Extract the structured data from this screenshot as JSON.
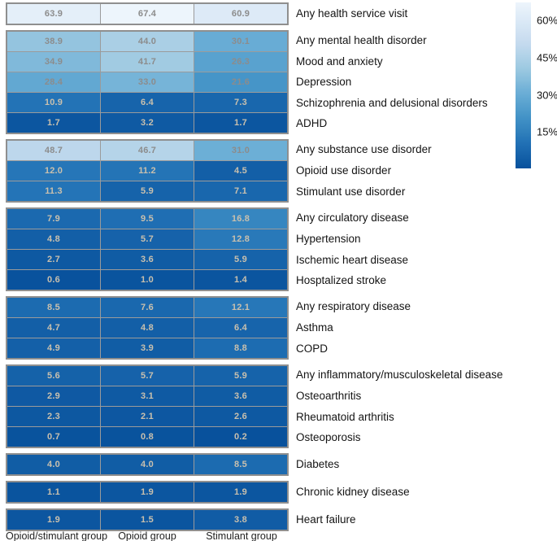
{
  "chart_data": {
    "type": "heatmap",
    "title": "",
    "orientation": "rows are conditions, columns are cohorts; value = prevalence %",
    "columns": [
      "Opioid/stimulant group",
      "Opioid group",
      "Stimulant group"
    ],
    "groups": [
      {
        "rows": [
          {
            "label": "Any health service visit",
            "values": [
              "63.9",
              "67.4",
              "60.9"
            ]
          }
        ]
      },
      {
        "rows": [
          {
            "label": "Any mental health disorder",
            "values": [
              "38.9",
              "44.0",
              "30.1"
            ]
          },
          {
            "label": "Mood and anxiety",
            "values": [
              "34.9",
              "41.7",
              "26.3"
            ]
          },
          {
            "label": "Depression",
            "values": [
              "28.4",
              "33.0",
              "21.6"
            ]
          },
          {
            "label": "Schizophrenia and delusional disorders",
            "values": [
              "10.9",
              "6.4",
              "7.3"
            ]
          },
          {
            "label": "ADHD",
            "values": [
              "1.7",
              "3.2",
              "1.7"
            ]
          }
        ]
      },
      {
        "rows": [
          {
            "label": "Any substance use disorder",
            "values": [
              "48.7",
              "46.7",
              "31.0"
            ]
          },
          {
            "label": "Opioid use disorder",
            "values": [
              "12.0",
              "11.2",
              "4.5"
            ]
          },
          {
            "label": "Stimulant use disorder",
            "values": [
              "11.3",
              "5.9",
              "7.1"
            ]
          }
        ]
      },
      {
        "rows": [
          {
            "label": "Any circulatory disease",
            "values": [
              "7.9",
              "9.5",
              "16.8"
            ]
          },
          {
            "label": "Hypertension",
            "values": [
              "4.8",
              "5.7",
              "12.8"
            ]
          },
          {
            "label": "Ischemic heart disease",
            "values": [
              "2.7",
              "3.6",
              "5.9"
            ]
          },
          {
            "label": "Hosptalized stroke",
            "values": [
              "0.6",
              "1.0",
              "1.4"
            ]
          }
        ]
      },
      {
        "rows": [
          {
            "label": "Any respiratory disease",
            "values": [
              "8.5",
              "7.6",
              "12.1"
            ]
          },
          {
            "label": "Asthma",
            "values": [
              "4.7",
              "4.8",
              "6.4"
            ]
          },
          {
            "label": "COPD",
            "values": [
              "4.9",
              "3.9",
              "8.8"
            ]
          }
        ]
      },
      {
        "rows": [
          {
            "label": "Any inflammatory/musculoskeletal disease",
            "values": [
              "5.6",
              "5.7",
              "5.9"
            ]
          },
          {
            "label": "Osteoarthritis",
            "values": [
              "2.9",
              "3.1",
              "3.6"
            ]
          },
          {
            "label": "Rheumatoid arthritis",
            "values": [
              "2.3",
              "2.1",
              "2.6"
            ]
          },
          {
            "label": "Osteoporosis",
            "values": [
              "0.7",
              "0.8",
              "0.2"
            ]
          }
        ]
      },
      {
        "rows": [
          {
            "label": "Diabetes",
            "values": [
              "4.0",
              "4.0",
              "8.5"
            ]
          }
        ]
      },
      {
        "rows": [
          {
            "label": "Chronic kidney disease",
            "values": [
              "1.1",
              "1.9",
              "1.9"
            ]
          }
        ]
      },
      {
        "rows": [
          {
            "label": "Heart failure",
            "values": [
              "1.9",
              "1.5",
              "3.8"
            ]
          }
        ]
      }
    ],
    "legend": {
      "ticks": [
        {
          "label": "60%",
          "value": 60
        },
        {
          "label": "45%",
          "value": 45
        },
        {
          "label": "30%",
          "value": 30
        },
        {
          "label": "15%",
          "value": 15
        }
      ],
      "position": "right"
    },
    "scale": {
      "min": 0.2,
      "max": 67.4,
      "palette": "Blues (low = dark blue, high = near-white)",
      "low_color": "#08519c",
      "high_color": "#e9f1fa",
      "grid_border_color": "#8f8f8f",
      "value_text_color_on_dark": "#c9c0ae",
      "value_text_color_on_light": "#8c8c8c"
    }
  }
}
